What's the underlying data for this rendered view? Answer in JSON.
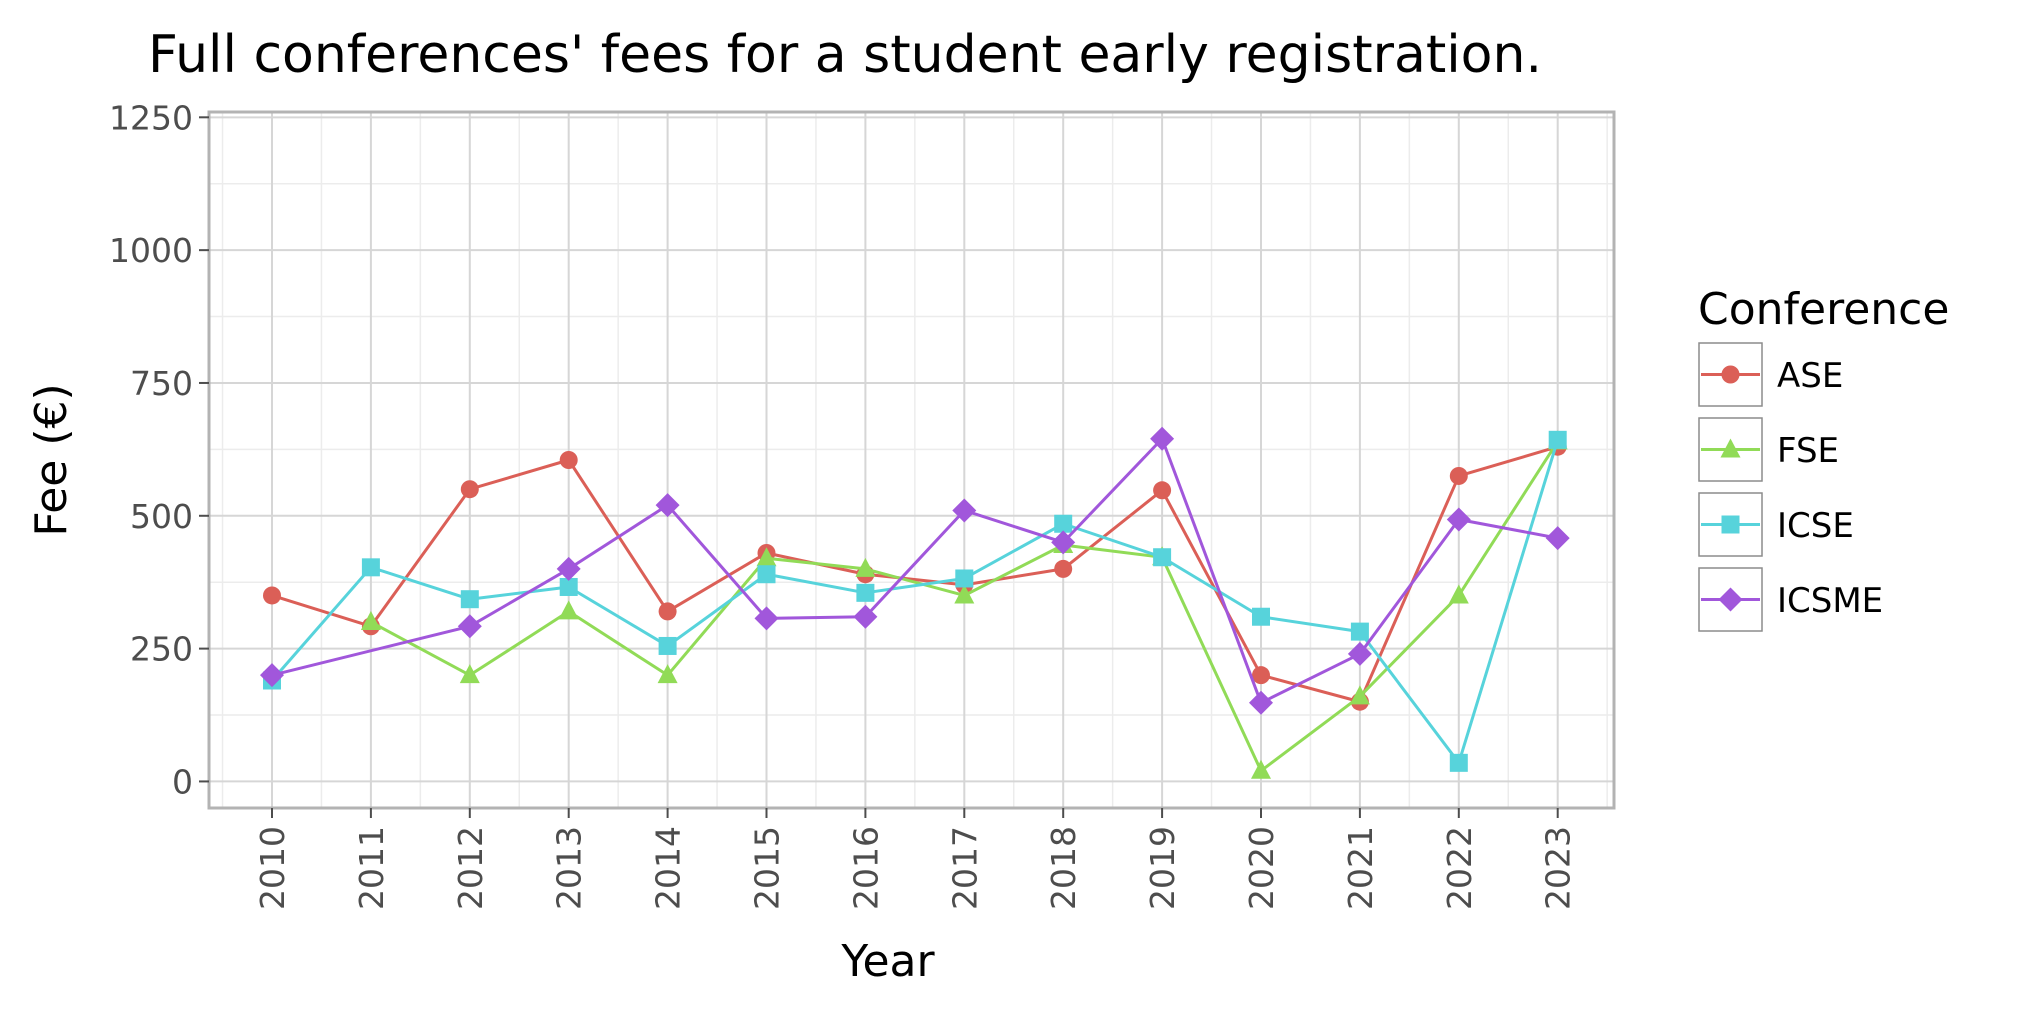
{
  "chart_data": {
    "type": "line",
    "title": "Full conferences' fees for a student early registration.",
    "xlabel": "Year",
    "ylabel": "Fee (€)",
    "ylim": [
      -50,
      1260
    ],
    "y_ticks": [
      0,
      250,
      500,
      750,
      1000,
      1250
    ],
    "grid": true,
    "legend_position": "right",
    "legend_title": "Conference",
    "x": [
      "2010",
      "2011",
      "2012",
      "2013",
      "2014",
      "2015",
      "2016",
      "2017",
      "2018",
      "2019",
      "2020",
      "2021",
      "2022",
      "2023"
    ],
    "series": [
      {
        "name": "ASE",
        "color": "#db5f57",
        "marker": "circle",
        "values": [
          350,
          292,
          550,
          605,
          320,
          430,
          390,
          370,
          400,
          548,
          200,
          150,
          575,
          630
        ]
      },
      {
        "name": "FSE",
        "color": "#91db57",
        "marker": "triangle",
        "values": [
          null,
          300,
          200,
          320,
          200,
          420,
          400,
          350,
          445,
          422,
          20,
          160,
          350,
          640
        ]
      },
      {
        "name": "ICSE",
        "color": "#57d3db",
        "marker": "square",
        "values": [
          190,
          403,
          343,
          366,
          255,
          390,
          355,
          382,
          485,
          422,
          310,
          282,
          35,
          643
        ]
      },
      {
        "name": "ICSME",
        "color": "#a157db",
        "marker": "diamond",
        "values": [
          200,
          null,
          292,
          400,
          520,
          307,
          310,
          510,
          450,
          645,
          148,
          240,
          493,
          458
        ]
      }
    ]
  }
}
